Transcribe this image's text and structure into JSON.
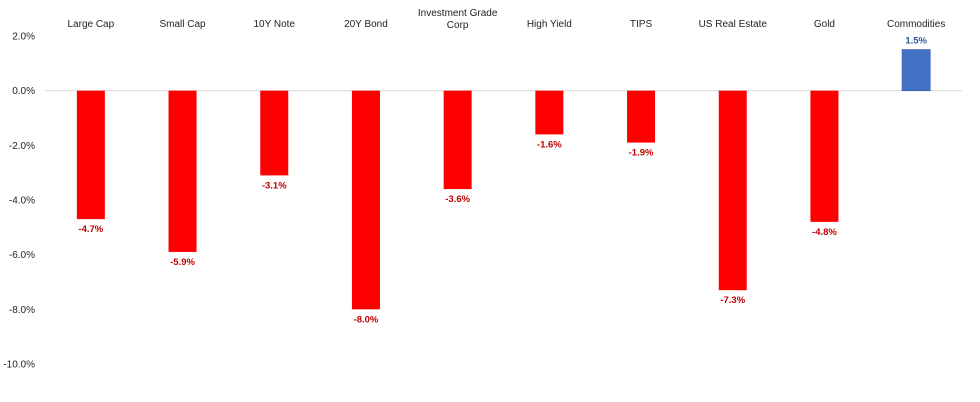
{
  "chart_data": {
    "type": "bar",
    "categories": [
      "Large Cap",
      "Small Cap",
      "10Y Note",
      "20Y Bond",
      "Investment Grade Corp",
      "High Yield",
      "TIPS",
      "US Real Estate",
      "Gold",
      "Commodities"
    ],
    "category_lines": [
      [
        "Large Cap"
      ],
      [
        "Small Cap"
      ],
      [
        "10Y Note"
      ],
      [
        "20Y Bond"
      ],
      [
        "Investment Grade",
        "Corp"
      ],
      [
        "High Yield"
      ],
      [
        "TIPS"
      ],
      [
        "US Real Estate"
      ],
      [
        "Gold"
      ],
      [
        "Commodities"
      ]
    ],
    "values": [
      -4.7,
      -5.9,
      -3.1,
      -8.0,
      -3.6,
      -1.6,
      -1.9,
      -7.3,
      -4.8,
      1.5
    ],
    "data_labels": [
      "-4.7%",
      "-5.9%",
      "-3.1%",
      "-8.0%",
      "-3.6%",
      "-1.6%",
      "-1.9%",
      "-7.3%",
      "-4.8%",
      "1.5%"
    ],
    "y_ticks": [
      2,
      0,
      -2,
      -4,
      -6,
      -8,
      -10
    ],
    "y_tick_labels": [
      "2.0%",
      "0.0%",
      "-2.0%",
      "-4.0%",
      "-6.0%",
      "-8.0%",
      "-10.0%"
    ],
    "ylim": [
      -10,
      2
    ],
    "title": "",
    "xlabel": "",
    "ylabel": "",
    "grid": false,
    "legend": "none",
    "colors": {
      "negative": "#ff0000",
      "positive": "#4472c4",
      "negative_label": "#c00000",
      "positive_label": "#2f5597",
      "zero_line": "#d9d9d9"
    }
  }
}
